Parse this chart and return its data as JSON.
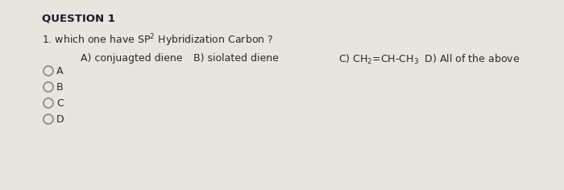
{
  "background_color": "#e8e4de",
  "question_label": "QUESTION 1",
  "question_label_fontsize": 9.5,
  "question_text_full": "1. which one have $\\mathregular{SP^2}$ Hybridization Carbon ?",
  "question_fontsize": 9,
  "options_A": "A) conjuagted diene",
  "options_B": "B) siolated diene",
  "options_C": "C) CH",
  "options_C2": "=CH-CH",
  "options_C3": "  D) All of the above",
  "choices": [
    "A",
    "B",
    "C",
    "D"
  ],
  "text_color": "#2a2a2a",
  "circle_color": "#888888",
  "title_color": "#1a1a2e"
}
